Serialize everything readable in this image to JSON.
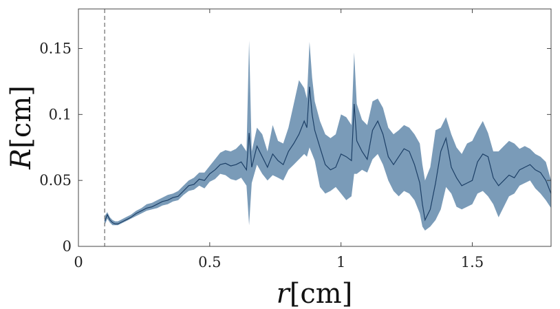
{
  "chart_data": {
    "type": "area",
    "xlabel_var": "r",
    "xlabel_unit": "[cm]",
    "ylabel_var": "R",
    "ylabel_unit": "[cm]",
    "xlim": [
      0,
      1.8
    ],
    "ylim": [
      0,
      0.18
    ],
    "xticks": [
      0,
      0.5,
      1,
      1.5
    ],
    "xtick_labels": [
      "0",
      "0.5",
      "1",
      "1.5"
    ],
    "yticks": [
      0,
      0.05,
      0.1,
      0.15
    ],
    "ytick_labels": [
      "0",
      "0.05",
      "0.1",
      "0.15"
    ],
    "grid": false,
    "reference_line_x": 0.1,
    "colors": {
      "band": "#7a9bb8",
      "line": "#1c3f66",
      "reference": "#888888",
      "axes": "#444444"
    },
    "x": [
      0.1,
      0.11,
      0.12,
      0.13,
      0.14,
      0.15,
      0.16,
      0.17,
      0.18,
      0.19,
      0.2,
      0.22,
      0.24,
      0.26,
      0.28,
      0.3,
      0.32,
      0.34,
      0.36,
      0.38,
      0.4,
      0.42,
      0.44,
      0.46,
      0.48,
      0.5,
      0.52,
      0.54,
      0.56,
      0.58,
      0.6,
      0.62,
      0.64,
      0.65,
      0.66,
      0.68,
      0.7,
      0.72,
      0.74,
      0.76,
      0.78,
      0.8,
      0.82,
      0.84,
      0.86,
      0.87,
      0.88,
      0.89,
      0.9,
      0.92,
      0.94,
      0.96,
      0.98,
      1.0,
      1.02,
      1.04,
      1.05,
      1.06,
      1.08,
      1.1,
      1.12,
      1.14,
      1.16,
      1.18,
      1.2,
      1.22,
      1.24,
      1.26,
      1.28,
      1.3,
      1.31,
      1.32,
      1.34,
      1.36,
      1.38,
      1.4,
      1.42,
      1.44,
      1.46,
      1.48,
      1.5,
      1.52,
      1.54,
      1.56,
      1.58,
      1.6,
      1.62,
      1.64,
      1.66,
      1.68,
      1.7,
      1.72,
      1.74,
      1.76,
      1.78,
      1.8
    ],
    "mean": [
      0.019,
      0.024,
      0.02,
      0.018,
      0.017,
      0.017,
      0.018,
      0.019,
      0.02,
      0.021,
      0.022,
      0.025,
      0.027,
      0.029,
      0.03,
      0.032,
      0.034,
      0.035,
      0.037,
      0.038,
      0.042,
      0.046,
      0.047,
      0.051,
      0.05,
      0.055,
      0.058,
      0.062,
      0.063,
      0.061,
      0.062,
      0.064,
      0.058,
      0.086,
      0.06,
      0.076,
      0.068,
      0.06,
      0.07,
      0.065,
      0.062,
      0.072,
      0.078,
      0.085,
      0.095,
      0.09,
      0.121,
      0.1,
      0.088,
      0.075,
      0.062,
      0.058,
      0.06,
      0.07,
      0.068,
      0.065,
      0.108,
      0.08,
      0.072,
      0.066,
      0.088,
      0.095,
      0.085,
      0.068,
      0.062,
      0.068,
      0.074,
      0.072,
      0.062,
      0.048,
      0.032,
      0.02,
      0.028,
      0.048,
      0.072,
      0.082,
      0.06,
      0.052,
      0.046,
      0.048,
      0.05,
      0.064,
      0.07,
      0.068,
      0.052,
      0.046,
      0.05,
      0.054,
      0.052,
      0.058,
      0.06,
      0.062,
      0.058,
      0.056,
      0.05,
      0.04
    ],
    "lower": [
      0.016,
      0.021,
      0.018,
      0.016,
      0.016,
      0.016,
      0.017,
      0.018,
      0.019,
      0.02,
      0.021,
      0.023,
      0.025,
      0.027,
      0.028,
      0.029,
      0.031,
      0.032,
      0.034,
      0.035,
      0.039,
      0.042,
      0.043,
      0.046,
      0.044,
      0.049,
      0.051,
      0.055,
      0.054,
      0.051,
      0.05,
      0.052,
      0.046,
      0.016,
      0.048,
      0.062,
      0.055,
      0.05,
      0.054,
      0.052,
      0.05,
      0.058,
      0.062,
      0.066,
      0.07,
      0.068,
      0.075,
      0.07,
      0.065,
      0.045,
      0.04,
      0.042,
      0.045,
      0.04,
      0.035,
      0.038,
      0.055,
      0.055,
      0.058,
      0.056,
      0.066,
      0.07,
      0.062,
      0.05,
      0.042,
      0.038,
      0.042,
      0.04,
      0.035,
      0.025,
      0.015,
      0.012,
      0.015,
      0.02,
      0.028,
      0.045,
      0.04,
      0.03,
      0.028,
      0.03,
      0.032,
      0.04,
      0.042,
      0.038,
      0.032,
      0.022,
      0.03,
      0.038,
      0.04,
      0.046,
      0.048,
      0.05,
      0.044,
      0.04,
      0.035,
      0.029
    ],
    "upper": [
      0.023,
      0.026,
      0.022,
      0.02,
      0.019,
      0.019,
      0.02,
      0.021,
      0.022,
      0.023,
      0.024,
      0.027,
      0.029,
      0.032,
      0.033,
      0.035,
      0.037,
      0.039,
      0.04,
      0.042,
      0.046,
      0.05,
      0.052,
      0.056,
      0.056,
      0.061,
      0.066,
      0.071,
      0.073,
      0.072,
      0.074,
      0.078,
      0.072,
      0.156,
      0.072,
      0.09,
      0.085,
      0.072,
      0.092,
      0.08,
      0.078,
      0.09,
      0.108,
      0.126,
      0.12,
      0.112,
      0.155,
      0.128,
      0.11,
      0.095,
      0.085,
      0.082,
      0.085,
      0.1,
      0.098,
      0.092,
      0.147,
      0.108,
      0.096,
      0.092,
      0.11,
      0.112,
      0.105,
      0.09,
      0.085,
      0.088,
      0.092,
      0.09,
      0.085,
      0.078,
      0.062,
      0.05,
      0.06,
      0.088,
      0.09,
      0.098,
      0.085,
      0.075,
      0.07,
      0.078,
      0.08,
      0.088,
      0.095,
      0.086,
      0.072,
      0.072,
      0.076,
      0.08,
      0.078,
      0.074,
      0.076,
      0.074,
      0.07,
      0.068,
      0.064,
      0.05
    ]
  }
}
